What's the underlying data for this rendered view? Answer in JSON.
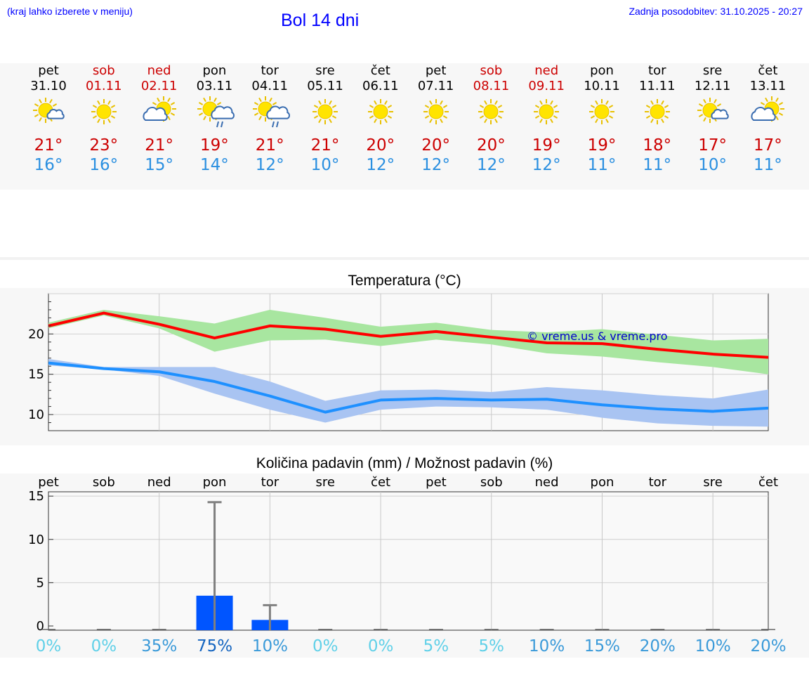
{
  "header": {
    "note": "(kraj lahko izberete v meniju)",
    "title": "Bol 14 dni",
    "updated": "Zadnja posodobitev: 31.10.2025 - 20:27"
  },
  "colors": {
    "accent": "#0000ff",
    "max_line": "#ff0000",
    "min_line": "#1e90ff",
    "max_band": "#a8e6a0",
    "min_band": "#a9c4f2",
    "bar": "#0055ff",
    "weekend": "#cc0000"
  },
  "days": [
    {
      "name": "pet",
      "date": "31.10",
      "weekend": false,
      "icon": "sun-small-cloud-icon",
      "max": "21°",
      "min": "16°"
    },
    {
      "name": "sob",
      "date": "01.11",
      "weekend": true,
      "icon": "sun-icon",
      "max": "23°",
      "min": "16°"
    },
    {
      "name": "ned",
      "date": "02.11",
      "weekend": true,
      "icon": "sun-cloud-icon",
      "max": "21°",
      "min": "15°"
    },
    {
      "name": "pon",
      "date": "03.11",
      "weekend": false,
      "icon": "sun-cloud-rain-icon",
      "max": "19°",
      "min": "14°"
    },
    {
      "name": "tor",
      "date": "04.11",
      "weekend": false,
      "icon": "sun-cloud-rain-icon",
      "max": "21°",
      "min": "12°"
    },
    {
      "name": "sre",
      "date": "05.11",
      "weekend": false,
      "icon": "sun-icon",
      "max": "21°",
      "min": "10°"
    },
    {
      "name": "čet",
      "date": "06.11",
      "weekend": false,
      "icon": "sun-icon",
      "max": "20°",
      "min": "12°"
    },
    {
      "name": "pet",
      "date": "07.11",
      "weekend": false,
      "icon": "sun-icon",
      "max": "20°",
      "min": "12°"
    },
    {
      "name": "sob",
      "date": "08.11",
      "weekend": true,
      "icon": "sun-icon",
      "max": "20°",
      "min": "12°"
    },
    {
      "name": "ned",
      "date": "09.11",
      "weekend": true,
      "icon": "sun-icon",
      "max": "19°",
      "min": "12°"
    },
    {
      "name": "pon",
      "date": "10.11",
      "weekend": false,
      "icon": "sun-icon",
      "max": "19°",
      "min": "11°"
    },
    {
      "name": "tor",
      "date": "11.11",
      "weekend": false,
      "icon": "sun-icon",
      "max": "18°",
      "min": "11°"
    },
    {
      "name": "sre",
      "date": "12.11",
      "weekend": false,
      "icon": "sun-small-cloud-icon",
      "max": "17°",
      "min": "10°"
    },
    {
      "name": "čet",
      "date": "13.11",
      "weekend": false,
      "icon": "sun-cloud-icon",
      "max": "17°",
      "min": "11°"
    }
  ],
  "chart_data": [
    {
      "type": "line",
      "title": "Temperatura (°C)",
      "watermark": "© vreme.us & vreme.pro",
      "x": [
        0,
        1,
        2,
        3,
        4,
        5,
        6,
        7,
        8,
        9,
        10,
        11,
        12,
        13
      ],
      "ylim": [
        8,
        25
      ],
      "yticks": [
        "10",
        "15",
        "20"
      ],
      "grid": true,
      "series": [
        {
          "name": "max",
          "values": [
            21.0,
            22.6,
            21.2,
            19.5,
            21.0,
            20.6,
            19.7,
            20.3,
            19.6,
            18.9,
            18.8,
            18.1,
            17.5,
            17.1
          ]
        },
        {
          "name": "max_hi",
          "values": [
            21.4,
            23.0,
            22.2,
            21.3,
            23.0,
            22.0,
            20.9,
            21.4,
            20.5,
            20.2,
            20.6,
            19.9,
            19.2,
            19.4
          ]
        },
        {
          "name": "max_lo",
          "values": [
            20.7,
            22.3,
            20.7,
            17.8,
            19.2,
            19.3,
            18.5,
            19.3,
            18.7,
            17.6,
            17.2,
            16.5,
            15.9,
            15.0
          ]
        },
        {
          "name": "min",
          "values": [
            16.4,
            15.7,
            15.3,
            14.1,
            12.3,
            10.3,
            11.8,
            12.0,
            11.8,
            11.9,
            11.2,
            10.7,
            10.4,
            10.8
          ]
        },
        {
          "name": "min_hi",
          "values": [
            16.9,
            15.9,
            15.9,
            15.9,
            14.1,
            11.7,
            13.0,
            13.1,
            12.8,
            13.4,
            13.0,
            12.4,
            12.0,
            13.1
          ]
        },
        {
          "name": "min_lo",
          "values": [
            16.1,
            15.6,
            14.8,
            12.6,
            10.6,
            9.0,
            10.6,
            11.0,
            10.9,
            10.6,
            9.6,
            8.9,
            8.6,
            8.5
          ]
        }
      ]
    },
    {
      "type": "bar",
      "title": "Količina padavin (mm) / Možnost padavin (%)",
      "categories": [
        "pet",
        "sob",
        "ned",
        "pon",
        "tor",
        "sre",
        "čet",
        "pet",
        "sob",
        "ned",
        "pon",
        "tor",
        "sre",
        "čet"
      ],
      "values": [
        0,
        0,
        0,
        3.5,
        0.7,
        0,
        0,
        0,
        0,
        0,
        0,
        0,
        0,
        0
      ],
      "error_max": [
        0,
        0,
        0,
        14.3,
        2.4,
        0,
        0,
        0,
        0,
        0,
        0,
        0,
        0,
        0
      ],
      "probability": [
        "0%",
        "0%",
        "35%",
        "75%",
        "10%",
        "0%",
        "0%",
        "5%",
        "5%",
        "10%",
        "15%",
        "20%",
        "10%",
        "20%"
      ],
      "probability_values": [
        0,
        0,
        35,
        75,
        10,
        0,
        0,
        5,
        5,
        10,
        15,
        20,
        10,
        20
      ],
      "ylim": [
        0,
        15.5
      ],
      "yticks": [
        "0",
        "5",
        "10",
        "15"
      ]
    }
  ]
}
